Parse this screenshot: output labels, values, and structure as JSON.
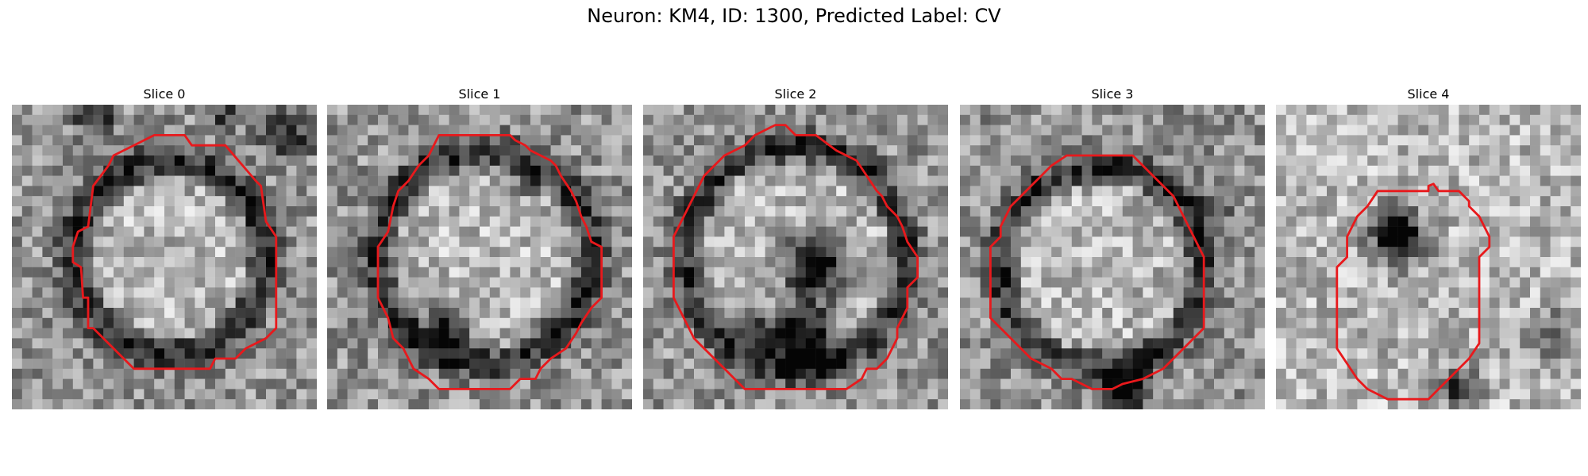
{
  "figure": {
    "title": "Neuron: KM4, ID: 1300, Predicted Label: CV"
  },
  "slices": [
    {
      "title": "Slice 0"
    },
    {
      "title": "Slice 1"
    },
    {
      "title": "Slice 2"
    },
    {
      "title": "Slice 3"
    },
    {
      "title": "Slice 4"
    }
  ],
  "colors": {
    "contour": "#e8191c"
  }
}
